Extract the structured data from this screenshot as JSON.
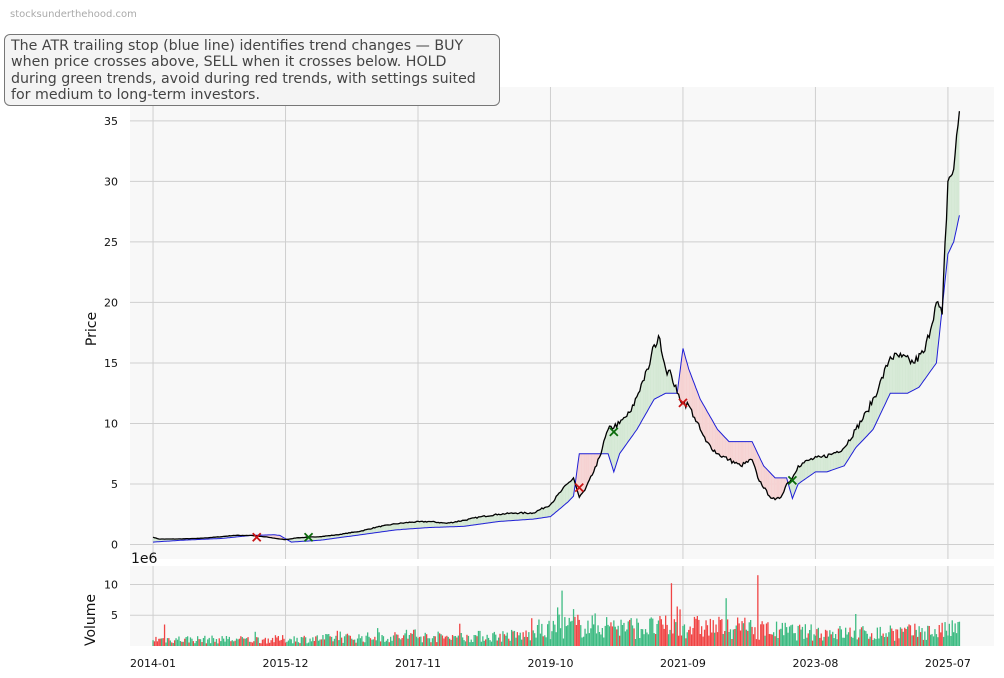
{
  "watermark": "stocksunderthehood.com",
  "annotation": "The ATR trailing stop (blue line) identifies trend changes — BUY when price crosses above, SELL when it crosses below. HOLD during green trends, avoid during red trends, with settings suited for medium to long-term investors.",
  "colors": {
    "price": "#000000",
    "trailing_stop": "#1f1fd6",
    "fill_up": "#d4e8d4",
    "fill_down": "#f6d2d2",
    "buy_marker": "#0b6b0b",
    "sell_marker": "#c81414",
    "volume_up": "#3dbb82",
    "volume_down": "#f04444",
    "grid": "#cfcfcf",
    "panel_bg": "#f8f8f8"
  },
  "chart_data": [
    {
      "type": "line",
      "ylabel": "Price",
      "ylim": [
        -1.2,
        37.8
      ],
      "yticks": [
        0,
        5,
        10,
        15,
        20,
        25,
        30,
        35
      ],
      "x_range": [
        "2013-09",
        "2026-03"
      ],
      "xticks": [
        "2014-01",
        "2015-12",
        "2017-11",
        "2019-10",
        "2021-09",
        "2023-08",
        "2025-07"
      ],
      "grid": true,
      "series": [
        {
          "role": "price",
          "points": [
            [
              "2014-01",
              0.6
            ],
            [
              "2014-02",
              0.45
            ],
            [
              "2014-05",
              0.45
            ],
            [
              "2014-09",
              0.5
            ],
            [
              "2015-01",
              0.65
            ],
            [
              "2015-03",
              0.75
            ],
            [
              "2015-06",
              0.75
            ],
            [
              "2015-09",
              0.6
            ],
            [
              "2015-11",
              0.45
            ],
            [
              "2015-12",
              0.4
            ],
            [
              "2016-02",
              0.55
            ],
            [
              "2016-06",
              0.65
            ],
            [
              "2016-09",
              0.8
            ],
            [
              "2017-01",
              1.1
            ],
            [
              "2017-04",
              1.45
            ],
            [
              "2017-07",
              1.7
            ],
            [
              "2017-10",
              1.85
            ],
            [
              "2018-01",
              1.9
            ],
            [
              "2018-04",
              1.75
            ],
            [
              "2018-07",
              2.0
            ],
            [
              "2018-10",
              2.3
            ],
            [
              "2019-01",
              2.5
            ],
            [
              "2019-04",
              2.6
            ],
            [
              "2019-07",
              2.6
            ],
            [
              "2019-10",
              3.3
            ],
            [
              "2019-12",
              4.5
            ],
            [
              "2020-02",
              5.5
            ],
            [
              "2020-03",
              3.9
            ],
            [
              "2020-04",
              4.5
            ],
            [
              "2020-06",
              6.5
            ],
            [
              "2020-08",
              9.5
            ],
            [
              "2020-10",
              10.0
            ],
            [
              "2020-12",
              11.0
            ],
            [
              "2021-02",
              13.5
            ],
            [
              "2021-03",
              14.5
            ],
            [
              "2021-04",
              16.5
            ],
            [
              "2021-05",
              17.0
            ],
            [
              "2021-06",
              14.5
            ],
            [
              "2021-07",
              14.0
            ],
            [
              "2021-08",
              12.5
            ],
            [
              "2021-09",
              11.7
            ],
            [
              "2021-10",
              11.5
            ],
            [
              "2021-11",
              10.5
            ],
            [
              "2021-12",
              9.5
            ],
            [
              "2022-01",
              8.5
            ],
            [
              "2022-03",
              7.5
            ],
            [
              "2022-05",
              7.0
            ],
            [
              "2022-07",
              6.5
            ],
            [
              "2022-09",
              7.0
            ],
            [
              "2022-10",
              5.5
            ],
            [
              "2022-12",
              4.0
            ],
            [
              "2023-01",
              3.7
            ],
            [
              "2023-02",
              3.9
            ],
            [
              "2023-03",
              5.0
            ],
            [
              "2023-04",
              5.5
            ],
            [
              "2023-05",
              6.5
            ],
            [
              "2023-07",
              7.0
            ],
            [
              "2023-09",
              7.2
            ],
            [
              "2023-11",
              7.5
            ],
            [
              "2024-01",
              8.0
            ],
            [
              "2024-03",
              9.5
            ],
            [
              "2024-05",
              11.0
            ],
            [
              "2024-07",
              13.0
            ],
            [
              "2024-09",
              15.5
            ],
            [
              "2024-11",
              15.5
            ],
            [
              "2025-01",
              15.0
            ],
            [
              "2025-03",
              16.0
            ],
            [
              "2025-05",
              20.0
            ],
            [
              "2025-06",
              19.0
            ],
            [
              "2025-07",
              30.0
            ],
            [
              "2025-08",
              31.0
            ],
            [
              "2025-09",
              35.8
            ]
          ]
        },
        {
          "role": "trailing_stop",
          "points": [
            [
              "2014-01",
              0.2
            ],
            [
              "2014-06",
              0.35
            ],
            [
              "2015-01",
              0.5
            ],
            [
              "2015-06",
              0.75
            ],
            [
              "2015-10",
              0.8
            ],
            [
              "2015-11",
              0.75
            ],
            [
              "2016-01",
              0.2
            ],
            [
              "2016-06",
              0.35
            ],
            [
              "2017-01",
              0.8
            ],
            [
              "2017-07",
              1.2
            ],
            [
              "2018-01",
              1.4
            ],
            [
              "2018-07",
              1.5
            ],
            [
              "2019-01",
              1.9
            ],
            [
              "2019-07",
              2.1
            ],
            [
              "2019-10",
              2.3
            ],
            [
              "2020-01",
              3.5
            ],
            [
              "2020-02",
              4.0
            ],
            [
              "2020-03",
              7.5
            ],
            [
              "2020-08",
              7.5
            ],
            [
              "2020-09",
              6.0
            ],
            [
              "2020-10",
              7.5
            ],
            [
              "2021-01",
              9.5
            ],
            [
              "2021-04",
              12.0
            ],
            [
              "2021-06",
              12.5
            ],
            [
              "2021-08",
              12.5
            ],
            [
              "2021-09",
              16.2
            ],
            [
              "2021-10",
              14.5
            ],
            [
              "2021-12",
              12.0
            ],
            [
              "2022-03",
              9.5
            ],
            [
              "2022-05",
              8.5
            ],
            [
              "2022-09",
              8.5
            ],
            [
              "2022-11",
              6.5
            ],
            [
              "2023-01",
              5.5
            ],
            [
              "2023-03",
              5.5
            ],
            [
              "2023-04",
              3.8
            ],
            [
              "2023-05",
              5.0
            ],
            [
              "2023-08",
              6.0
            ],
            [
              "2023-10",
              6.0
            ],
            [
              "2024-01",
              6.5
            ],
            [
              "2024-03",
              8.0
            ],
            [
              "2024-06",
              9.5
            ],
            [
              "2024-09",
              12.5
            ],
            [
              "2024-12",
              12.5
            ],
            [
              "2025-02",
              13.0
            ],
            [
              "2025-05",
              15.0
            ],
            [
              "2025-07",
              24.0
            ],
            [
              "2025-08",
              25.0
            ],
            [
              "2025-09",
              27.2
            ]
          ]
        }
      ],
      "signals": [
        {
          "type": "SELL",
          "date": "2015-07",
          "price": 0.6
        },
        {
          "type": "BUY",
          "date": "2016-04",
          "price": 0.6
        },
        {
          "type": "SELL",
          "date": "2020-03",
          "price": 4.7
        },
        {
          "type": "BUY",
          "date": "2020-09",
          "price": 9.3
        },
        {
          "type": "SELL",
          "date": "2021-09",
          "price": 11.7
        },
        {
          "type": "BUY",
          "date": "2023-04",
          "price": 5.3
        }
      ]
    },
    {
      "type": "bar",
      "ylabel": "Volume",
      "scale_label": "1e6",
      "ylim": [
        0,
        13
      ],
      "yticks": [
        5,
        10
      ],
      "note": "monthly-sampled volume bars, millions",
      "volume_profile": [
        [
          "2014-01",
          1.2
        ],
        [
          "2015-06",
          1.1
        ],
        [
          "2016-06",
          1.3
        ],
        [
          "2017-06",
          1.6
        ],
        [
          "2018-06",
          1.6
        ],
        [
          "2019-06",
          1.9
        ],
        [
          "2020-01",
          3.5
        ],
        [
          "2020-06",
          3.6
        ],
        [
          "2021-01",
          3.2
        ],
        [
          "2021-09",
          3.4
        ],
        [
          "2022-06",
          3.2
        ],
        [
          "2023-06",
          2.4
        ],
        [
          "2024-06",
          2.2
        ],
        [
          "2025-06",
          2.6
        ],
        [
          "2025-09",
          3.0
        ]
      ],
      "peaks": [
        [
          "2014-03",
          3.5
        ],
        [
          "2020-02",
          6.0
        ],
        [
          "2019-12",
          9.0
        ],
        [
          "2021-07",
          10.2
        ],
        [
          "2022-10",
          11.5
        ],
        [
          "2024-03",
          5.2
        ]
      ]
    }
  ]
}
